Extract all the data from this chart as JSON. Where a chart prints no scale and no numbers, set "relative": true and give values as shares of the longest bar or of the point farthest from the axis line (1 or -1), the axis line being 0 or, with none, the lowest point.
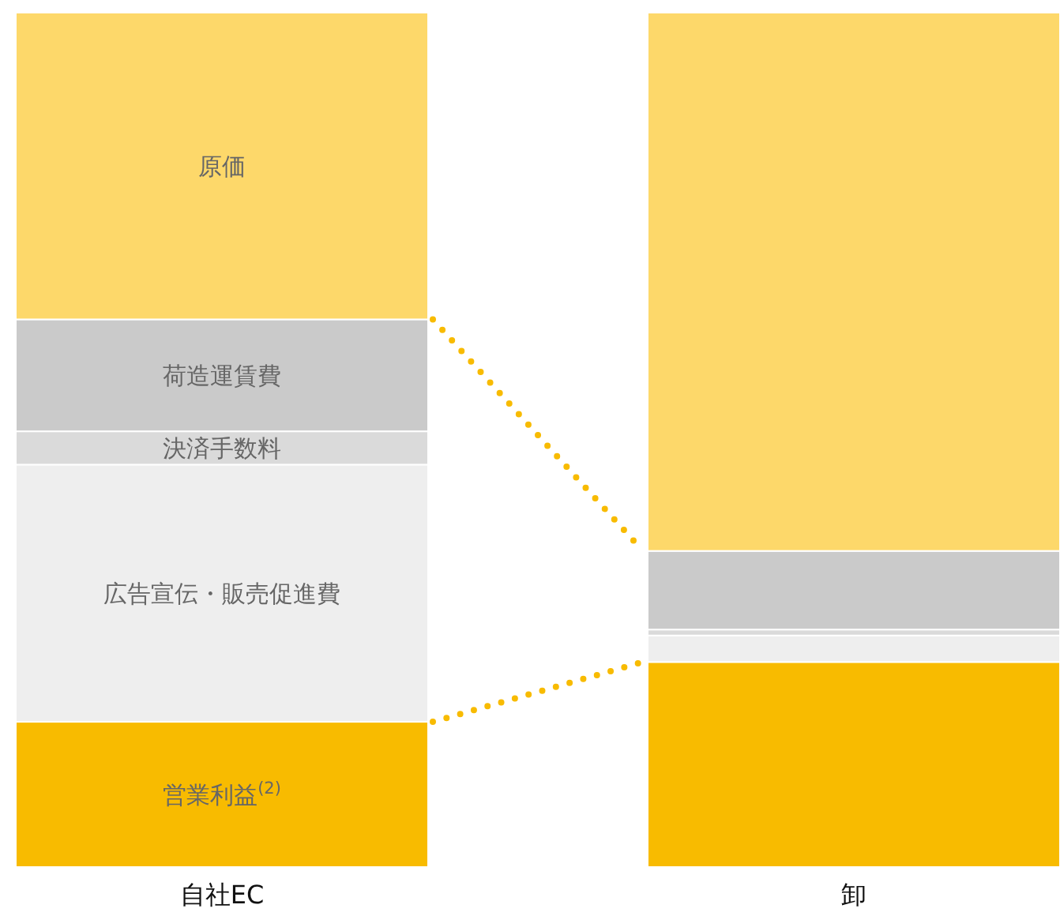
{
  "chart_data": {
    "type": "bar",
    "stacked": true,
    "relative": true,
    "categories": [
      "自社EC",
      "卸"
    ],
    "series": [
      {
        "name": "営業利益$^{(2)}$",
        "color": "#f8bb00",
        "values": [
          0.17,
          0.24
        ]
      },
      {
        "name": "広告宣伝・販売促進費",
        "color": "#eeeeee",
        "values": [
          0.301,
          0.031
        ]
      },
      {
        "name": "決済手数料",
        "color": "#dadada",
        "values": [
          0.039,
          0.007
        ]
      },
      {
        "name": "荷造運賃費",
        "color": "#cacaca",
        "values": [
          0.131,
          0.092
        ]
      },
      {
        "name": "原価",
        "color": "#fdd86a",
        "values": [
          0.359,
          0.63
        ]
      }
    ]
  }
}
